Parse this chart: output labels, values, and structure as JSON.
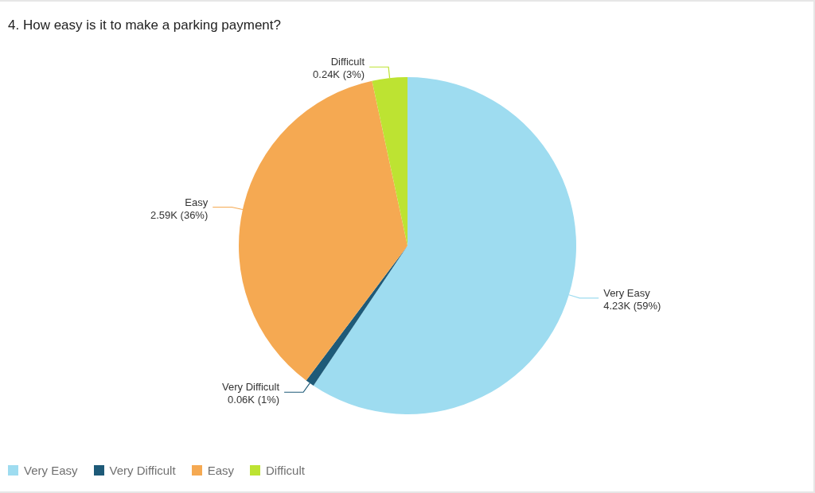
{
  "chart_data": {
    "type": "pie",
    "title": "4. How easy is it to make a parking payment?",
    "categories": [
      "Very Easy",
      "Very Difficult",
      "Easy",
      "Difficult"
    ],
    "values": [
      4230,
      60,
      2590,
      240
    ],
    "value_labels": [
      "4.23K (59%)",
      "0.06K (1%)",
      "2.59K (36%)",
      "0.24K (3%)"
    ],
    "colors": [
      "#9edcf0",
      "#1e5a78",
      "#f5a952",
      "#bde332"
    ],
    "legend": "bottom left"
  }
}
